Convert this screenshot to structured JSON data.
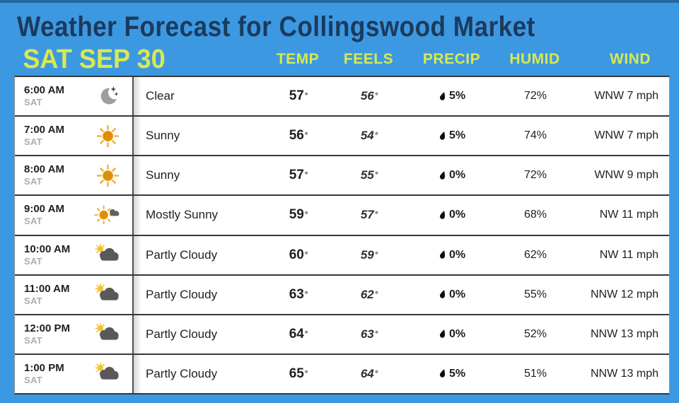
{
  "page": {
    "title": "Weather Forecast for Collingswood Market",
    "date_label": "SAT SEP 30"
  },
  "columns": {
    "temp": "TEMP",
    "feels": "FEELS",
    "precip": "PRECIP",
    "humid": "HUMID",
    "wind": "WIND"
  },
  "units": {
    "degree": "°"
  },
  "colors": {
    "background_blue": "#3D98E2",
    "accent_yellow": "#D9E94F",
    "title_navy": "#1B3B5C",
    "row_divider": "#383838"
  },
  "rows": [
    {
      "time": "6:00 AM",
      "day": "SAT",
      "icon": "clear-night",
      "condition": "Clear",
      "temp": "57",
      "feels": "56",
      "precip": "5%",
      "humid": "72%",
      "wind": "WNW 7 mph"
    },
    {
      "time": "7:00 AM",
      "day": "SAT",
      "icon": "sunny",
      "condition": "Sunny",
      "temp": "56",
      "feels": "54",
      "precip": "5%",
      "humid": "74%",
      "wind": "WNW 7 mph"
    },
    {
      "time": "8:00 AM",
      "day": "SAT",
      "icon": "sunny",
      "condition": "Sunny",
      "temp": "57",
      "feels": "55",
      "precip": "0%",
      "humid": "72%",
      "wind": "WNW 9 mph"
    },
    {
      "time": "9:00 AM",
      "day": "SAT",
      "icon": "mostly-sunny",
      "condition": "Mostly Sunny",
      "temp": "59",
      "feels": "57",
      "precip": "0%",
      "humid": "68%",
      "wind": "NW 11 mph"
    },
    {
      "time": "10:00 AM",
      "day": "SAT",
      "icon": "partly-cloudy",
      "condition": "Partly Cloudy",
      "temp": "60",
      "feels": "59",
      "precip": "0%",
      "humid": "62%",
      "wind": "NW 11 mph"
    },
    {
      "time": "11:00 AM",
      "day": "SAT",
      "icon": "partly-cloudy",
      "condition": "Partly Cloudy",
      "temp": "63",
      "feels": "62",
      "precip": "0%",
      "humid": "55%",
      "wind": "NNW 12 mph"
    },
    {
      "time": "12:00 PM",
      "day": "SAT",
      "icon": "partly-cloudy",
      "condition": "Partly Cloudy",
      "temp": "64",
      "feels": "63",
      "precip": "0%",
      "humid": "52%",
      "wind": "NNW 13 mph"
    },
    {
      "time": "1:00 PM",
      "day": "SAT",
      "icon": "partly-cloudy",
      "condition": "Partly Cloudy",
      "temp": "65",
      "feels": "64",
      "precip": "5%",
      "humid": "51%",
      "wind": "NNW 13 mph"
    }
  ]
}
